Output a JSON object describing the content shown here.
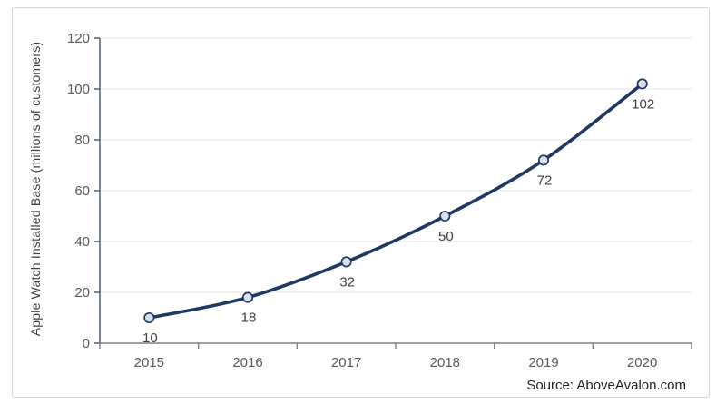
{
  "chart_data": {
    "type": "line",
    "title": "",
    "categories": [
      "2015",
      "2016",
      "2017",
      "2018",
      "2019",
      "2020"
    ],
    "series": [
      {
        "name": "Apple Watch Installed Base",
        "values": [
          10,
          18,
          32,
          50,
          72,
          102
        ]
      }
    ],
    "data_labels": [
      "10",
      "18",
      "32",
      "50",
      "72",
      "102"
    ],
    "xlabel": "",
    "ylabel": "Apple Watch Installed Base (millions of customers)",
    "ylim": [
      0,
      120
    ],
    "yticks": [
      0,
      20,
      40,
      60,
      80,
      100,
      120
    ],
    "grid": true,
    "legend": "none",
    "line_smoothing": true
  },
  "footer": {
    "source_label": "Source: AboveAvalon.com"
  },
  "colors": {
    "line": "#1f3864",
    "marker_fill": "#d9e0ec",
    "marker_border": "#1f3864",
    "gridline": "#e6e6e6",
    "y_axis_line": "#44546a",
    "x_axis_line": "#7f7f7f",
    "tick_label": "#595959",
    "data_label": "#404040",
    "axis_title": "#3f3f3f",
    "source_text": "#1f1f1f",
    "frame_border": "#d7d7d7",
    "background": "#ffffff"
  }
}
